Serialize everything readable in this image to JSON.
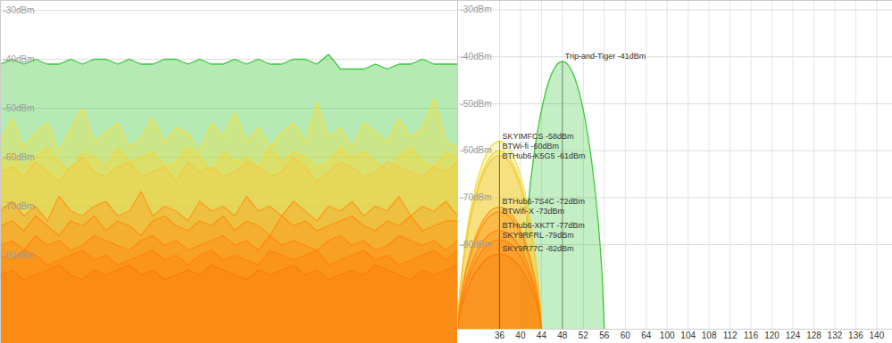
{
  "chart_data": [
    {
      "type": "area",
      "x": [
        0,
        1,
        2,
        3,
        4,
        5,
        6,
        7,
        8,
        9,
        10,
        11,
        12,
        13,
        14,
        15,
        16,
        17,
        18,
        19,
        20,
        21,
        22,
        23,
        24,
        25,
        26,
        27,
        28,
        29,
        30,
        31,
        32,
        33,
        34,
        35,
        36,
        37,
        38,
        39
      ],
      "xlim": [
        0,
        39
      ],
      "ylim": [
        -98,
        -28
      ],
      "yticks": [
        {
          "value": -30,
          "label": "-30dBm"
        },
        {
          "value": -40,
          "label": "-40dBm"
        },
        {
          "value": -50,
          "label": "-50dBm"
        },
        {
          "value": -60,
          "label": "-60dBm"
        },
        {
          "value": -70,
          "label": "-70dBm"
        },
        {
          "value": -80,
          "label": "-80dBm"
        }
      ],
      "grid": true,
      "tick_labels": "y",
      "series": [
        {
          "color": "#3cc83c",
          "values": [
            -41,
            -40,
            -41,
            -40,
            -41,
            -41,
            -40,
            -41,
            -40,
            -40,
            -41,
            -40,
            -41,
            -41,
            -40,
            -40,
            -41,
            -40,
            -41,
            -41,
            -40,
            -41,
            -40,
            -41,
            -41,
            -40,
            -40,
            -41,
            -39,
            -42,
            -42,
            -42,
            -41,
            -42,
            -41,
            -41,
            -40,
            -41,
            -41,
            -41
          ]
        },
        {
          "color": "#f0e040",
          "values": [
            -57,
            -52,
            -58,
            -55,
            -53,
            -59,
            -54,
            -50,
            -57,
            -55,
            -53,
            -58,
            -56,
            -52,
            -57,
            -54,
            -55,
            -59,
            -53,
            -56,
            -51,
            -57,
            -54,
            -58,
            -55,
            -53,
            -57,
            -49,
            -56,
            -54,
            -58,
            -53,
            -55,
            -57,
            -52,
            -56,
            -54,
            -48,
            -57,
            -58
          ]
        },
        {
          "color": "#f2d83a",
          "values": [
            -61,
            -59,
            -62,
            -60,
            -58,
            -61,
            -63,
            -59,
            -60,
            -62,
            -58,
            -61,
            -60,
            -59,
            -62,
            -61,
            -58,
            -60,
            -63,
            -59,
            -61,
            -60,
            -62,
            -58,
            -61,
            -59,
            -60,
            -62,
            -61,
            -58,
            -60,
            -59,
            -61,
            -63,
            -60,
            -58,
            -61,
            -62,
            -59,
            -60
          ]
        },
        {
          "color": "#f5c842",
          "values": [
            -63,
            -62,
            -64,
            -61,
            -63,
            -65,
            -62,
            -60,
            -63,
            -64,
            -62,
            -61,
            -64,
            -63,
            -62,
            -65,
            -61,
            -63,
            -62,
            -64,
            -63,
            -61,
            -62,
            -64,
            -63,
            -60,
            -62,
            -65,
            -63,
            -61,
            -62,
            -64,
            -63,
            -61,
            -62,
            -63,
            -64,
            -62,
            -63,
            -61
          ]
        },
        {
          "color": "#ff9c1a",
          "values": [
            -71,
            -69,
            -72,
            -70,
            -73,
            -68,
            -71,
            -72,
            -70,
            -69,
            -72,
            -71,
            -67,
            -72,
            -70,
            -71,
            -73,
            -69,
            -71,
            -70,
            -72,
            -68,
            -71,
            -70,
            -72,
            -69,
            -71,
            -73,
            -70,
            -71,
            -69,
            -72,
            -70,
            -71,
            -68,
            -72,
            -70,
            -71,
            -69,
            -72
          ]
        },
        {
          "color": "#ff9214",
          "values": [
            -74,
            -73,
            -75,
            -72,
            -74,
            -76,
            -73,
            -74,
            -72,
            -75,
            -73,
            -74,
            -76,
            -73,
            -72,
            -74,
            -75,
            -73,
            -74,
            -72,
            -75,
            -73,
            -74,
            -76,
            -72,
            -74,
            -73,
            -75,
            -74,
            -73,
            -72,
            -74,
            -75,
            -73,
            -74,
            -72,
            -75,
            -74,
            -73,
            -73
          ]
        },
        {
          "color": "#ff8a10",
          "values": [
            -78,
            -77,
            -79,
            -76,
            -78,
            -77,
            -79,
            -78,
            -76,
            -77,
            -78,
            -79,
            -77,
            -76,
            -78,
            -77,
            -79,
            -78,
            -77,
            -76,
            -78,
            -77,
            -79,
            -76,
            -78,
            -77,
            -78,
            -79,
            -77,
            -76,
            -78,
            -77,
            -79,
            -78,
            -76,
            -77,
            -78,
            -77,
            -79,
            -77
          ]
        },
        {
          "color": "#ff840e",
          "values": [
            -80,
            -81,
            -79,
            -80,
            -82,
            -81,
            -80,
            -79,
            -81,
            -80,
            -82,
            -81,
            -80,
            -79,
            -81,
            -80,
            -82,
            -80,
            -79,
            -81,
            -80,
            -81,
            -82,
            -79,
            -80,
            -81,
            -80,
            -79,
            -82,
            -81,
            -80,
            -79,
            -81,
            -80,
            -82,
            -81,
            -80,
            -79,
            -81,
            -79
          ]
        },
        {
          "color": "#fa7d0c",
          "values": [
            -84,
            -83,
            -85,
            -84,
            -83,
            -82,
            -84,
            -85,
            -83,
            -84,
            -83,
            -82,
            -84,
            -83,
            -85,
            -84,
            -83,
            -84,
            -82,
            -83,
            -84,
            -85,
            -83,
            -84,
            -83,
            -82,
            -84,
            -83,
            -85,
            -84,
            -83,
            -84,
            -82,
            -83,
            -84,
            -85,
            -83,
            -84,
            -83,
            -82
          ]
        }
      ]
    },
    {
      "type": "channel",
      "xlim": [
        28,
        143
      ],
      "xticks": [
        36,
        40,
        44,
        48,
        52,
        56,
        60,
        64,
        100,
        104,
        108,
        112,
        116,
        120,
        124,
        128,
        132,
        136,
        140
      ],
      "ylim": [
        -98,
        -28
      ],
      "yticks": [
        {
          "value": -30,
          "label": "-30dBm"
        },
        {
          "value": -40,
          "label": "-40dBm"
        },
        {
          "value": -50,
          "label": "-50dBm"
        },
        {
          "value": -60,
          "label": "-60dBm"
        },
        {
          "value": -70,
          "label": "-70dBm"
        },
        {
          "value": -80,
          "label": "-80dBm"
        }
      ],
      "grid": true,
      "tick_labels": true,
      "data_labels": true,
      "series": [
        {
          "name": "Trip-and-Tiger",
          "color": "#3cc83c",
          "channel": 48,
          "width": 16,
          "value": -41,
          "value_label": "-41dBm"
        },
        {
          "name": "SKYIMFCS",
          "color": "#f0e040",
          "channel": 36,
          "width": 16,
          "value": -58,
          "value_label": "-58dBm"
        },
        {
          "name": "BTWi-fi",
          "color": "#f2d83a",
          "channel": 36,
          "width": 16,
          "value": -60,
          "value_label": "-60dBm"
        },
        {
          "name": "BTHub6-K5G5",
          "color": "#f5c842",
          "channel": 36,
          "width": 16,
          "value": -61,
          "value_label": "-61dBm"
        },
        {
          "name": "BTHub6-7S4C",
          "color": "#ff9c1a",
          "channel": 36,
          "width": 16,
          "value": -72,
          "value_label": "-72dBm"
        },
        {
          "name": "BTWifi-X",
          "color": "#ff9214",
          "channel": 36,
          "width": 16,
          "value": -73,
          "value_label": "-73dBm"
        },
        {
          "name": "BTHub6-XK7T",
          "color": "#ff8a10",
          "channel": 36,
          "width": 16,
          "value": -77,
          "value_label": "-77dBm"
        },
        {
          "name": "SKY9RFRL",
          "color": "#ff840e",
          "channel": 36,
          "width": 16,
          "value": -79,
          "value_label": "-79dBm"
        },
        {
          "name": "SKY9R77C",
          "color": "#fa7d0c",
          "channel": 36,
          "width": 16,
          "value": -82,
          "value_label": "-82dBm"
        }
      ]
    }
  ]
}
